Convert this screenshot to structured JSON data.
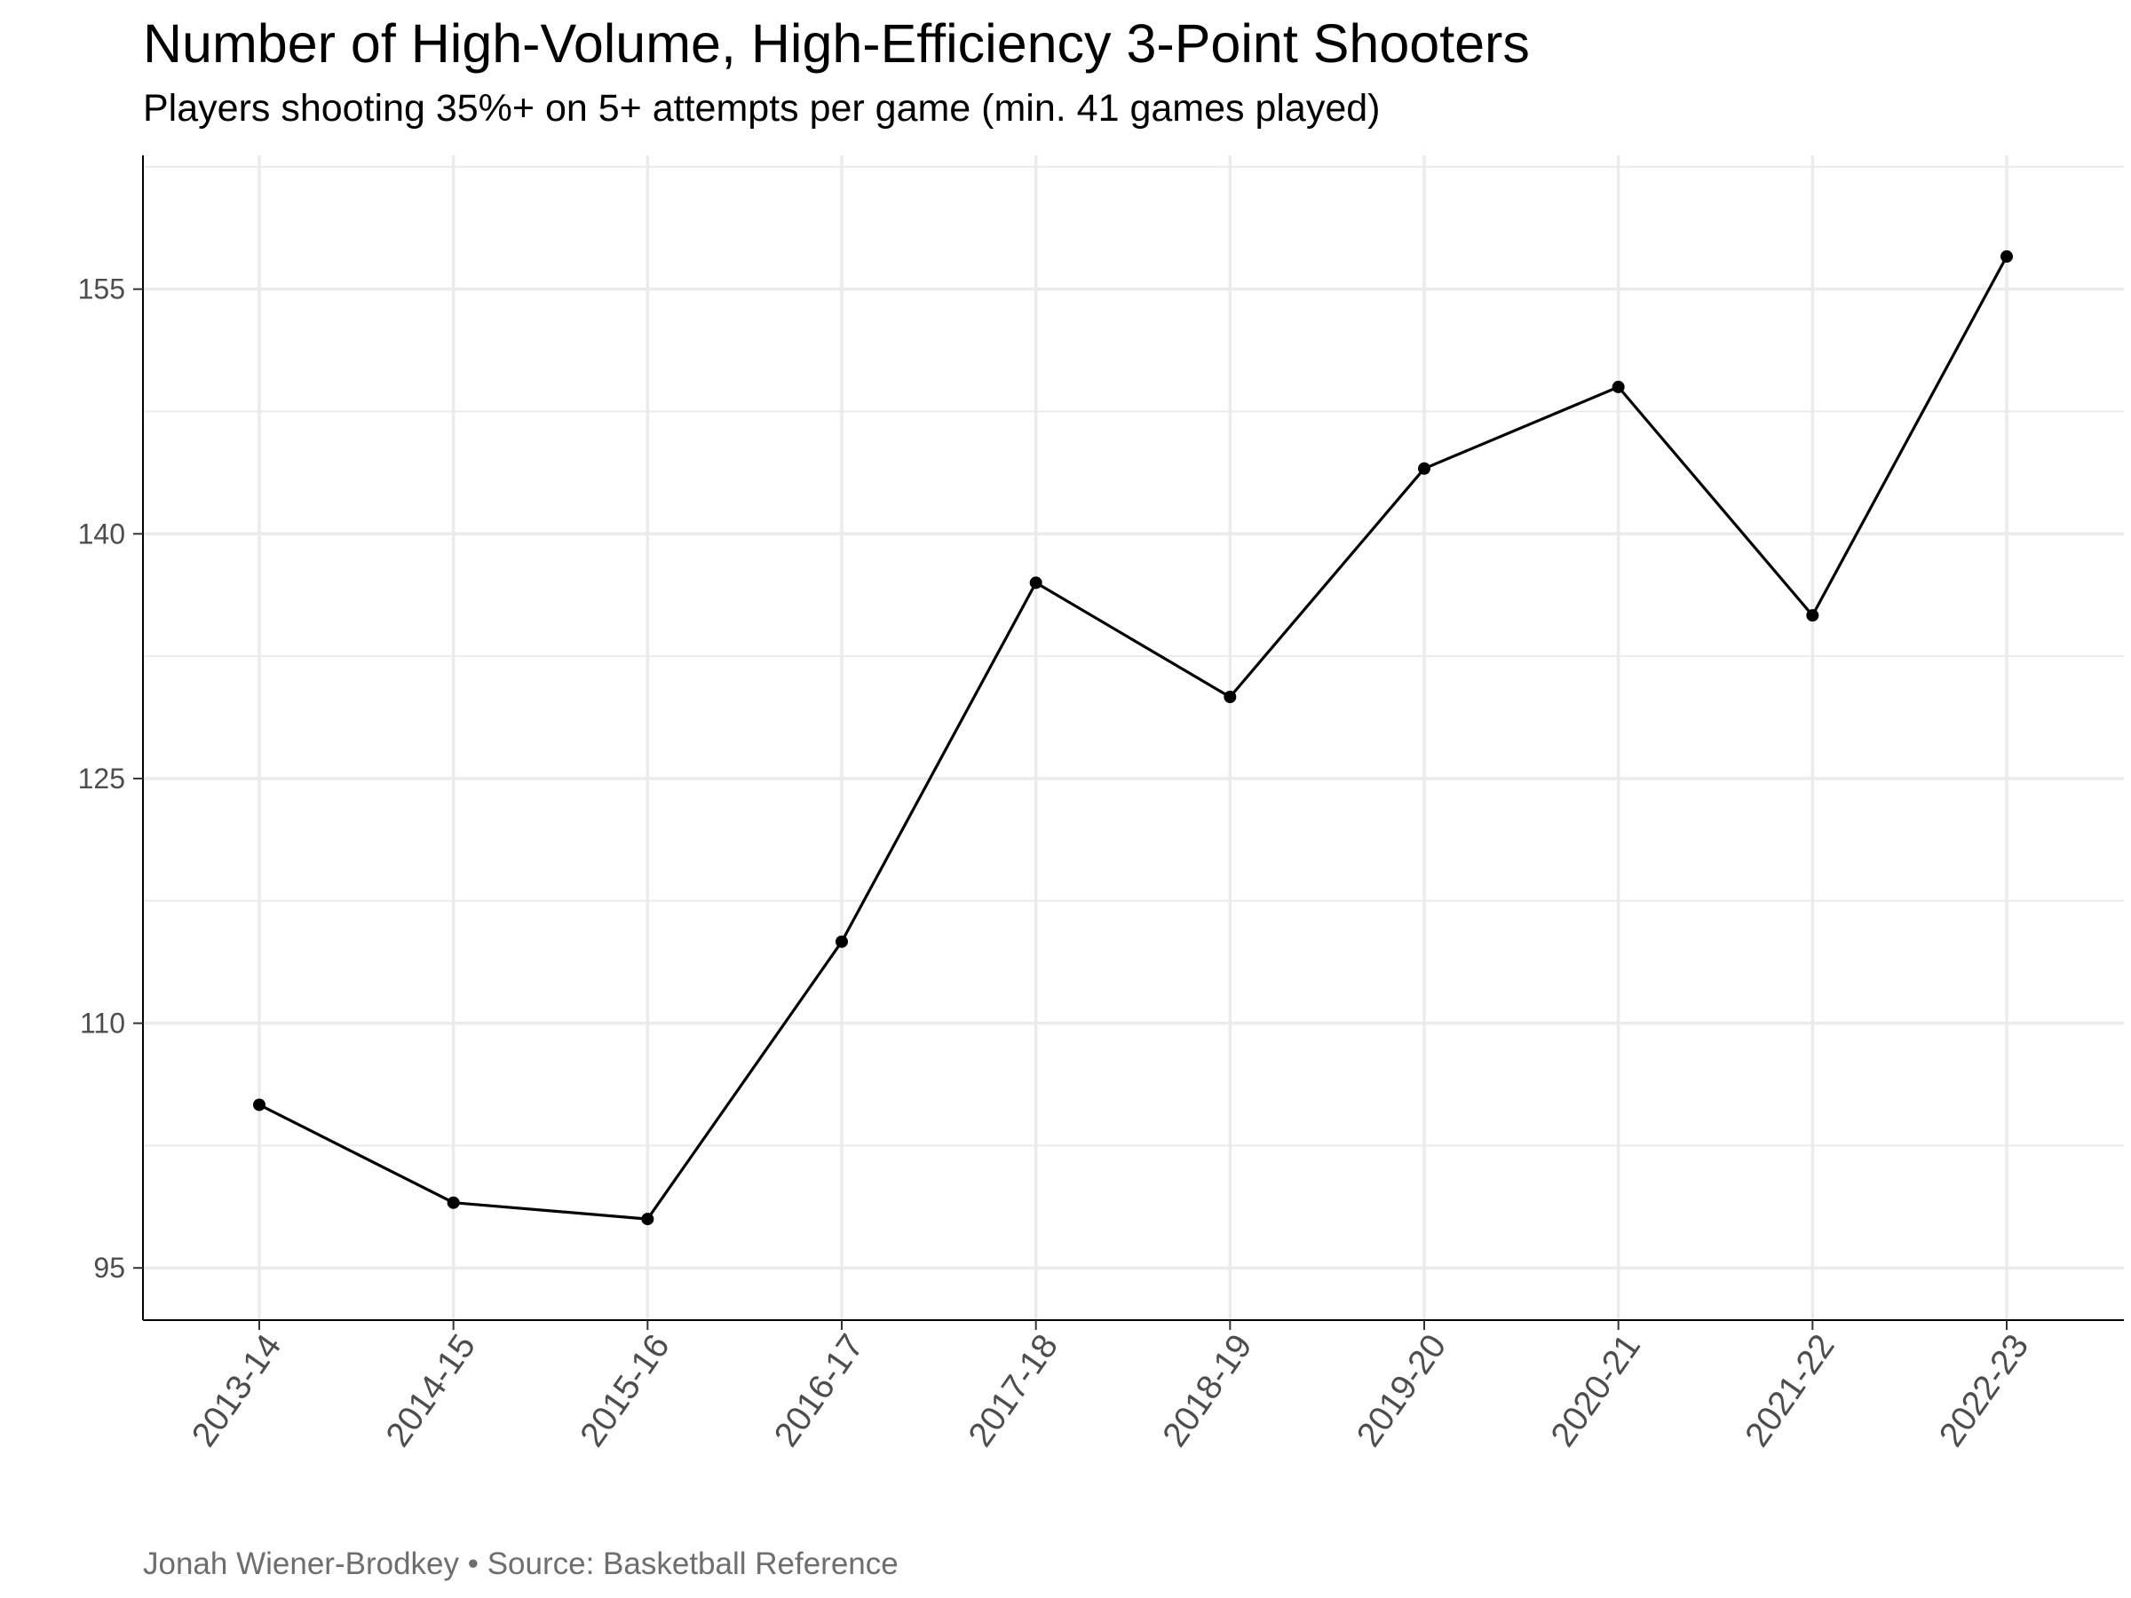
{
  "chart_data": {
    "type": "line",
    "title": "Number of High-Volume, High-Efficiency 3-Point Shooters",
    "subtitle": "Players shooting 35%+ on 5+ attempts per game (min. 41 games played)",
    "caption": "Jonah Wiener-Brodkey • Source: Basketball Reference",
    "xlabel": "",
    "ylabel": "",
    "categories": [
      "2013-14",
      "2014-15",
      "2015-16",
      "2016-17",
      "2017-18",
      "2018-19",
      "2019-20",
      "2020-21",
      "2021-22",
      "2022-23"
    ],
    "series": [
      {
        "values": [
          105,
          99,
          98,
          115,
          137,
          130,
          144,
          149,
          135,
          157
        ]
      }
    ],
    "y_ticks": [
      95,
      110,
      125,
      140,
      155
    ],
    "ylim": [
      91.8,
      163.2
    ],
    "grid": true,
    "legend": "none",
    "colors": {
      "line": "#000000",
      "points": "#000000",
      "grid": "#ebebeb",
      "axis": "#000000"
    }
  }
}
